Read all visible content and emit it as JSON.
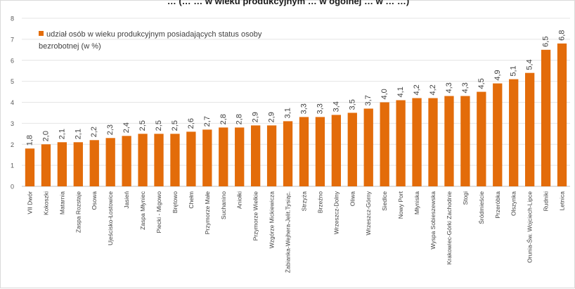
{
  "chart_data": {
    "type": "bar",
    "title": "… (… … w wieku produkcyjnym … w ogólnej … w … …)",
    "title_note": "",
    "ylim": [
      0,
      8
    ],
    "yticks": [
      0,
      1,
      2,
      3,
      4,
      5,
      6,
      7,
      8
    ],
    "grid": true,
    "legend": "top-left",
    "bar_color": "#e36c0a",
    "series": [
      {
        "name": "udział osób w wieku produkcyjnym posiadających status osoby bezrobotnej (w %)",
        "values": [
          1.8,
          2.0,
          2.1,
          2.1,
          2.2,
          2.3,
          2.4,
          2.5,
          2.5,
          2.5,
          2.6,
          2.7,
          2.8,
          2.8,
          2.9,
          2.9,
          3.1,
          3.3,
          3.3,
          3.4,
          3.5,
          3.7,
          4.0,
          4.1,
          4.2,
          4.2,
          4.3,
          4.3,
          4.5,
          4.9,
          5.1,
          5.4,
          6.5,
          6.8
        ]
      }
    ],
    "data_labels": [
      "1,8",
      "2,0",
      "2,1",
      "2,1",
      "2,2",
      "2,3",
      "2,4",
      "2,5",
      "2,5",
      "2,5",
      "2,6",
      "2,7",
      "2,8",
      "2,8",
      "2,9",
      "2,9",
      "3,1",
      "3,3",
      "3,3",
      "3,4",
      "3,5",
      "3,7",
      "4,0",
      "4,1",
      "4,2",
      "4,2",
      "4,3",
      "4,3",
      "4,5",
      "4,9",
      "5,1",
      "5,4",
      "6,5",
      "6,8"
    ],
    "categories": [
      "VII Dwór",
      "Kokoszki",
      "Matarnia",
      "Zaspa Rozstaje",
      "Osowa",
      "Ujeścisko-Łostowice",
      "Jasień",
      "Zaspa Młyniec",
      "Piecki - Migowo",
      "Brętowo",
      "Chełm",
      "Przymorze Małe",
      "Suchanino",
      "Aniołki",
      "Przymorze Wielkie",
      "Wzgórze Mickiewicza",
      "Żabianka-Wejhera-Jelit.Tysiąc.",
      "Strzyża",
      "Brzeźno",
      "Wrzeszcz-Dolny",
      "Oliwa",
      "Wrzeszcz-Górny",
      "Siedlce",
      "Nowy Port",
      "Młyniska",
      "Wyspa Sobieszewska",
      "Krakowiec-Górki Zachodnie",
      "Stogi",
      "Śródmieście",
      "Przeróbka",
      "Olszynka",
      "Orunia-Św. Wojciech-Lipce",
      "Rudniki",
      "Letnica"
    ]
  }
}
